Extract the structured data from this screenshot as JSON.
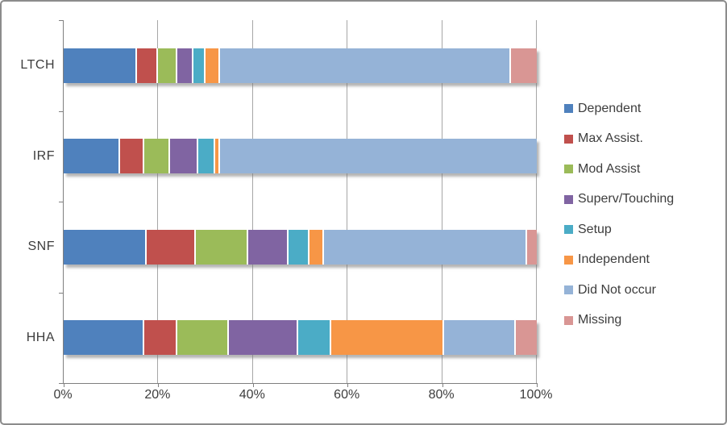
{
  "chart_data": {
    "type": "bar",
    "subtype": "horizontal-stacked",
    "title": "",
    "categories": [
      "LTCH",
      "IRF",
      "SNF",
      "HHA"
    ],
    "series": [
      {
        "name": "Dependent",
        "color": "#4F81BD",
        "values": [
          15.5,
          12,
          17.5,
          17
        ]
      },
      {
        "name": "Max Assist.",
        "color": "#C0504D",
        "values": [
          4.5,
          5,
          10.5,
          7
        ]
      },
      {
        "name": "Mod Assist",
        "color": "#9BBB59",
        "values": [
          4,
          5.5,
          11,
          11
        ]
      },
      {
        "name": "Superv/Touching",
        "color": "#8064A2",
        "values": [
          3.5,
          6,
          8.5,
          14.5
        ]
      },
      {
        "name": "Setup",
        "color": "#4BACC6",
        "values": [
          2.5,
          3.5,
          4.5,
          7
        ]
      },
      {
        "name": "Independent",
        "color": "#F79646",
        "values": [
          3,
          1,
          3,
          24
        ]
      },
      {
        "name": "Did Not occur",
        "color": "#95B3D7",
        "values": [
          61.5,
          67,
          43,
          15
        ]
      },
      {
        "name": "Missing",
        "color": "#D99694",
        "values": [
          5.5,
          0,
          2,
          4.5
        ]
      }
    ],
    "x_tick_labels": [
      "0%",
      "20%",
      "40%",
      "60%",
      "80%",
      "100%"
    ],
    "xlim": [
      0,
      100
    ],
    "grid": true,
    "legend_position": "right"
  }
}
